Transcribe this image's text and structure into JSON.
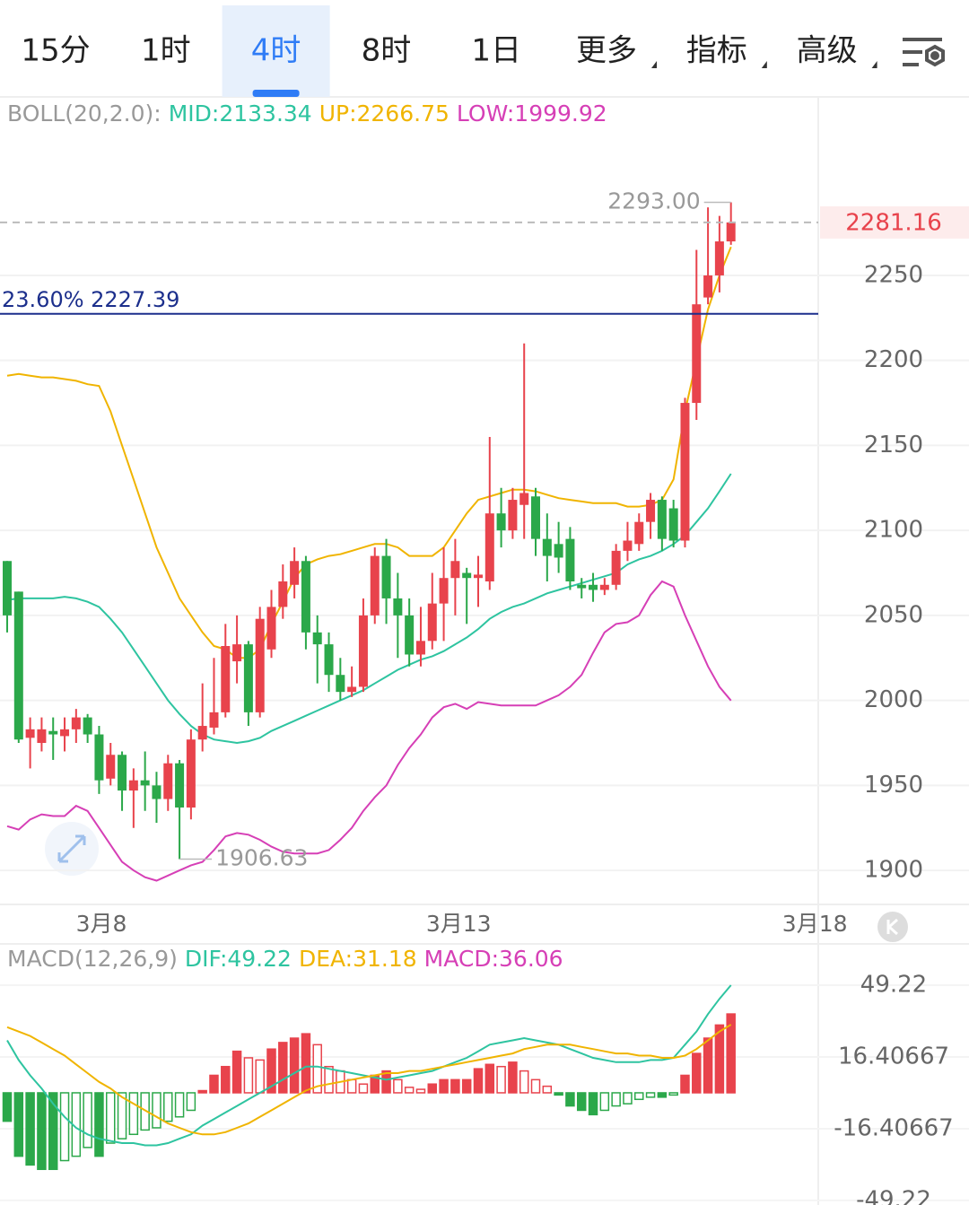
{
  "tabs": {
    "items": [
      {
        "label": "15分"
      },
      {
        "label": "1时"
      },
      {
        "label": "4时"
      },
      {
        "label": "8时"
      },
      {
        "label": "1日"
      },
      {
        "label": "更多",
        "menu": true
      },
      {
        "label": "指标",
        "menu": true
      },
      {
        "label": "高级",
        "menu": true
      }
    ],
    "active": 2
  },
  "chart_data": [
    {
      "type": "candlestick",
      "indicator": "BOLL(20,2.0):",
      "open": [
        2082,
        2064,
        1978,
        1975,
        1982,
        1979,
        1983,
        1990,
        1980,
        1954,
        1968,
        1947,
        1953,
        1950,
        1942,
        1963,
        1937,
        1977,
        1984,
        1993,
        2023,
        2033,
        1993,
        2030,
        2055,
        2068,
        2082,
        2040,
        2033,
        2015,
        2005,
        2008,
        2050,
        2085,
        2060,
        2050,
        2027,
        2035,
        2057,
        2072,
        2075,
        2072,
        2070,
        2110,
        2100,
        2115,
        2120,
        2095,
        2092,
        2095,
        2068,
        2068,
        2065,
        2068,
        2088,
        2092,
        2105,
        2118,
        2113,
        2094,
        2175,
        2237,
        2250,
        2270
      ],
      "high": [
        2082,
        2064,
        1990,
        1990,
        1990,
        1990,
        1995,
        1992,
        1985,
        1975,
        1970,
        1960,
        1970,
        1958,
        1968,
        1965,
        1983,
        2010,
        2025,
        2045,
        2050,
        2035,
        2055,
        2065,
        2080,
        2090,
        2085,
        2050,
        2040,
        2025,
        2020,
        2060,
        2090,
        2095,
        2075,
        2060,
        2055,
        2075,
        2090,
        2095,
        2078,
        2085,
        2155,
        2125,
        2125,
        2210,
        2125,
        2110,
        2105,
        2102,
        2072,
        2075,
        2072,
        2092,
        2105,
        2110,
        2122,
        2120,
        2118,
        2178,
        2265,
        2290,
        2285,
        2293
      ],
      "low": [
        2040,
        1975,
        1960,
        1970,
        1965,
        1970,
        1975,
        1975,
        1945,
        1950,
        1935,
        1925,
        1935,
        1928,
        1935,
        1906.63,
        1930,
        1970,
        1980,
        1990,
        2010,
        1985,
        1990,
        2025,
        2048,
        2060,
        2030,
        2010,
        2005,
        2000,
        2002,
        2005,
        2045,
        2045,
        2025,
        2020,
        2020,
        2030,
        2035,
        2050,
        2045,
        2055,
        2065,
        2090,
        2095,
        2095,
        2085,
        2070,
        2075,
        2065,
        2060,
        2058,
        2062,
        2065,
        2082,
        2088,
        2095,
        2088,
        2090,
        2090,
        2165,
        2233,
        2240,
        2268
      ],
      "close": [
        2050,
        1977,
        1983,
        1983,
        1980,
        1983,
        1990,
        1980,
        1953,
        1968,
        1947,
        1953,
        1950,
        1942,
        1963,
        1937,
        1977,
        1985,
        1993,
        2032,
        2033,
        1993,
        2048,
        2055,
        2070,
        2082,
        2040,
        2033,
        2015,
        2005,
        2008,
        2050,
        2085,
        2060,
        2050,
        2027,
        2035,
        2057,
        2072,
        2082,
        2072,
        2074,
        2110,
        2100,
        2118,
        2122,
        2095,
        2085,
        2084,
        2070,
        2066,
        2065,
        2068,
        2088,
        2094,
        2105,
        2118,
        2095,
        2094,
        2175,
        2233,
        2250,
        2270,
        2281.16
      ],
      "up_color": "#e8434c",
      "down_color": "#2ba84a",
      "series": [
        {
          "name": "MID:2133.34",
          "color": "#2ec4a0",
          "values": [
            2059,
            2060,
            2060,
            2060,
            2060,
            2061,
            2060,
            2058,
            2055,
            2048,
            2040,
            2030,
            2020,
            2010,
            2000,
            1992,
            1985,
            1980,
            1977,
            1976,
            1975,
            1976,
            1978,
            1982,
            1985,
            1988,
            1991,
            1994,
            1997,
            2000,
            2003,
            2006,
            2010,
            2014,
            2018,
            2021,
            2024,
            2026,
            2029,
            2033,
            2037,
            2042,
            2048,
            2052,
            2055,
            2057,
            2060,
            2063,
            2065,
            2067,
            2069,
            2071,
            2073,
            2075,
            2080,
            2083,
            2085,
            2088,
            2092,
            2097,
            2105,
            2113,
            2123,
            2133.34
          ]
        },
        {
          "name": "UP:2266.75",
          "color": "#f0b400",
          "values": [
            2191,
            2192,
            2191,
            2190,
            2190,
            2189,
            2188,
            2186,
            2185,
            2170,
            2150,
            2130,
            2110,
            2090,
            2075,
            2060,
            2050,
            2040,
            2032,
            2030,
            2025,
            2025,
            2030,
            2045,
            2058,
            2072,
            2080,
            2083,
            2085,
            2086,
            2088,
            2090,
            2092,
            2092,
            2090,
            2085,
            2085,
            2085,
            2090,
            2100,
            2110,
            2118,
            2120,
            2122,
            2124,
            2124,
            2123,
            2121,
            2119,
            2118,
            2117,
            2116,
            2116,
            2116,
            2114,
            2114,
            2115,
            2118,
            2130,
            2170,
            2200,
            2230,
            2250,
            2266.75
          ]
        },
        {
          "name": "LOW:1999.92",
          "color": "#d63fb6",
          "values": [
            1926,
            1924,
            1930,
            1933,
            1932,
            1932,
            1938,
            1935,
            1925,
            1915,
            1905,
            1900,
            1896,
            1894,
            1897,
            1900,
            1903,
            1905,
            1912,
            1920,
            1922,
            1921,
            1918,
            1914,
            1911,
            1910,
            1910,
            1910,
            1912,
            1918,
            1925,
            1935,
            1943,
            1950,
            1962,
            1972,
            1980,
            1990,
            1996,
            1998,
            1995,
            1999,
            1998,
            1997,
            1997,
            1997,
            1997,
            2000,
            2003,
            2008,
            2015,
            2028,
            2040,
            2045,
            2046,
            2050,
            2062,
            2070,
            2067,
            2050,
            2035,
            2020,
            2008,
            1999.92
          ]
        }
      ],
      "xlim": [
        -0.625,
        70.6
      ],
      "xticks": [
        {
          "value": 8.2,
          "label": "3月8"
        },
        {
          "value": 39.3,
          "label": "3月13"
        },
        {
          "value": 70.3,
          "label": "3月18"
        }
      ],
      "ylim": [
        1880,
        2355
      ],
      "yticks": [
        1900,
        1950,
        2000,
        2050,
        2100,
        2150,
        2200,
        2250
      ],
      "grid": true,
      "high_label": "2293.00",
      "low_label": "1906.63",
      "last_label": "2281.16",
      "levels": [
        {
          "value": 2227.39,
          "label": "23.60% 2227.39",
          "color": "#1c2f8c"
        }
      ]
    },
    {
      "type": "macd",
      "indicator": "MACD(12,26,9)",
      "up_color": "#e8434c",
      "down_color": "#2ba84a",
      "series": [
        {
          "name": "DIF:49.22",
          "color": "#2ec4a0",
          "values": [
            24,
            15,
            8,
            2,
            -5,
            -11,
            -16,
            -19,
            -21,
            -22,
            -23,
            -23,
            -24,
            -24,
            -23,
            -21,
            -19,
            -15,
            -12,
            -9,
            -6,
            -3,
            0,
            3,
            6,
            9,
            12,
            12,
            11,
            10,
            9,
            8,
            7,
            6,
            7,
            8,
            9,
            10,
            12,
            14,
            16,
            19,
            22,
            23,
            24,
            25,
            24,
            23,
            22,
            20,
            18,
            16,
            15,
            14,
            14,
            14,
            15,
            15,
            16,
            22,
            28,
            36,
            43,
            49.22
          ]
        },
        {
          "name": "DEA:31.18",
          "color": "#f0b400",
          "values": [
            30,
            28,
            26,
            23,
            20,
            17,
            13,
            9,
            5,
            2,
            -2,
            -5,
            -8,
            -11,
            -14,
            -16,
            -18,
            -19,
            -19,
            -18,
            -16,
            -14,
            -11,
            -8,
            -5,
            -2,
            1,
            3,
            4,
            5,
            6,
            7,
            8,
            9,
            9,
            10,
            10,
            11,
            12,
            13,
            14,
            15,
            16,
            17,
            18,
            20,
            21,
            22,
            22,
            22,
            21,
            20,
            19,
            18,
            18,
            17,
            17,
            16,
            16,
            17,
            20,
            24,
            28,
            31.18
          ]
        },
        {
          "name": "MACD:36.06",
          "color": "#d63fb6",
          "kind": "bar",
          "values": [
            -13,
            -29,
            -33,
            -35,
            -35,
            -31,
            -29,
            -25,
            -29,
            -23,
            -21,
            -19,
            -17,
            -16,
            -13,
            -11,
            -8,
            1,
            8,
            12,
            19,
            16,
            15,
            20,
            23,
            25,
            27,
            22,
            12,
            10,
            6,
            4,
            8,
            10,
            6,
            2.5,
            1.6,
            4,
            6,
            6,
            6,
            11,
            13,
            12,
            14,
            10,
            6,
            3,
            -1,
            -6,
            -8,
            -10,
            -8,
            -6,
            -5,
            -3,
            -2,
            -2,
            -1,
            8,
            18,
            25,
            31,
            36.06
          ]
        }
      ],
      "xlim": [
        -0.625,
        70.6
      ],
      "ylim": [
        -51.3,
        52.5
      ],
      "yticks": [
        49.22,
        16.40667,
        -16.40667,
        -49.22
      ]
    }
  ]
}
